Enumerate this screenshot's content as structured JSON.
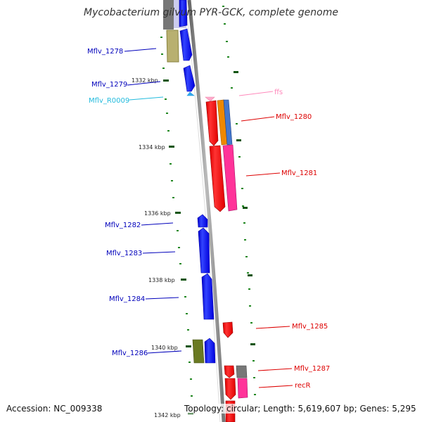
{
  "title": "Mycobacterium gilvum PYR-GCK, complete genome",
  "accession": "Accession: NC_009338",
  "summary": "Topology: circular; Length: 5,619,607 bp; Genes: 5,295",
  "colors": {
    "forward": "#0000ff",
    "reverse": "#ff0000",
    "forward_label": "#0000bb",
    "reverse_label": "#dd0000",
    "rna_label": "#22bbdd",
    "ffs_label": "#ff88bb",
    "backbone": "#888888",
    "tick": "#228822"
  },
  "scale_labels": [
    "1332 kbp",
    "1334 kbp",
    "1336 kbp",
    "1338 kbp",
    "1340 kbp",
    "1342 kbp"
  ],
  "gene_labels": [
    {
      "text": "Mflv_1278",
      "strand": "forward"
    },
    {
      "text": "Mflv_1279",
      "strand": "forward"
    },
    {
      "text": "Mflv_R0009",
      "strand": "rna"
    },
    {
      "text": "ffs",
      "strand": "ffs"
    },
    {
      "text": "Mflv_1280",
      "strand": "reverse"
    },
    {
      "text": "Mflv_1281",
      "strand": "reverse"
    },
    {
      "text": "Mflv_1282",
      "strand": "forward"
    },
    {
      "text": "Mflv_1283",
      "strand": "forward"
    },
    {
      "text": "Mflv_1284",
      "strand": "forward"
    },
    {
      "text": "Mflv_1285",
      "strand": "reverse"
    },
    {
      "text": "Mflv_1286",
      "strand": "forward"
    },
    {
      "text": "Mflv_1287",
      "strand": "reverse"
    },
    {
      "text": "recR",
      "strand": "reverse"
    }
  ]
}
